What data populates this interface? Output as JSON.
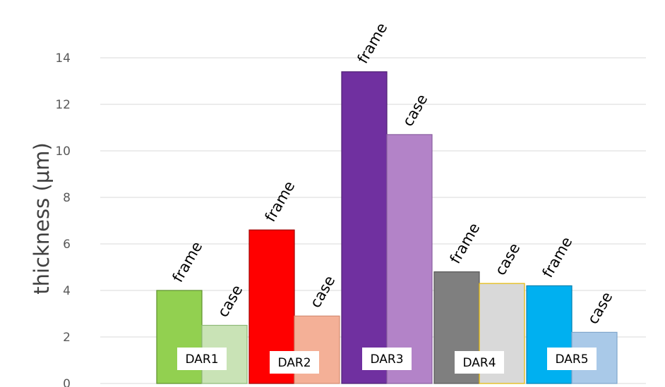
{
  "chart_data": {
    "type": "bar",
    "title": "",
    "xlabel": "",
    "ylabel": "thickness (μm)",
    "ylim": [
      0,
      14
    ],
    "yticks": [
      0,
      2,
      4,
      6,
      8,
      10,
      12,
      14
    ],
    "grid": true,
    "categories": [
      "DAR1",
      "DAR2",
      "DAR3",
      "DAR4",
      "DAR5"
    ],
    "bars": [
      {
        "group": "DAR1",
        "label": "frame",
        "value": 4.0,
        "color": "#92d050",
        "stroke": "#5e8f2d"
      },
      {
        "group": "DAR1",
        "label": "case",
        "value": 2.5,
        "color": "#c9e3b6",
        "stroke": "#8fb978"
      },
      {
        "group": "DAR2",
        "label": "frame",
        "value": 6.6,
        "color": "#ff0000",
        "stroke": "#a00000"
      },
      {
        "group": "DAR2",
        "label": "case",
        "value": 2.9,
        "color": "#f4b097",
        "stroke": "#d48c72"
      },
      {
        "group": "DAR3",
        "label": "frame",
        "value": 13.4,
        "color": "#7030a0",
        "stroke": "#4e1f72"
      },
      {
        "group": "DAR3",
        "label": "case",
        "value": 10.7,
        "color": "#b383c8",
        "stroke": "#8a5fa0"
      },
      {
        "group": "DAR4",
        "label": "frame",
        "value": 4.8,
        "color": "#7f7f7f",
        "stroke": "#595959"
      },
      {
        "group": "DAR4",
        "label": "case",
        "value": 4.3,
        "color": "#d9d9d9",
        "stroke": "#e6b800"
      },
      {
        "group": "DAR5",
        "label": "frame",
        "value": 4.2,
        "color": "#00b0f0",
        "stroke": "#0080b0"
      },
      {
        "group": "DAR5",
        "label": "case",
        "value": 2.2,
        "color": "#a9c9e8",
        "stroke": "#7fa6cc"
      }
    ]
  }
}
